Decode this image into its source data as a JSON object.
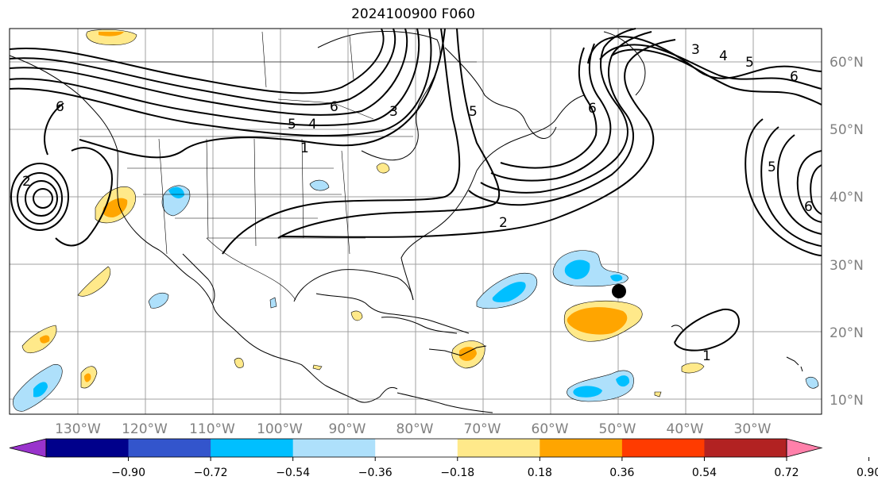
{
  "title": "2024100900 F060",
  "lon_labels": [
    "130°W",
    "120°W",
    "110°W",
    "100°W",
    "90°W",
    "80°W",
    "70°W",
    "60°W",
    "50°W",
    "40°W",
    "30°W"
  ],
  "lat_labels": [
    "60°N",
    "50°N",
    "40°N",
    "30°N",
    "20°N",
    "10°N"
  ],
  "contour_labels": [
    "6",
    "5",
    "4",
    "3",
    "5",
    "1",
    "2",
    "6",
    "5",
    "4",
    "3",
    "6",
    "5",
    "6",
    "2",
    "1",
    "6"
  ],
  "colorbar": {
    "ticks": [
      "−0.90",
      "−0.72",
      "−0.54",
      "−0.36",
      "−0.18",
      "0.18",
      "0.36",
      "0.54",
      "0.72",
      "0.90"
    ],
    "colors": [
      "#9933cc",
      "#00008b",
      "#3355cc",
      "#00bfff",
      "#aee0fb",
      "#ffffff",
      "#ffe98a",
      "#ffa500",
      "#ff3b00",
      "#b22222",
      "#ff80aa"
    ]
  },
  "marker": "storm-position"
}
